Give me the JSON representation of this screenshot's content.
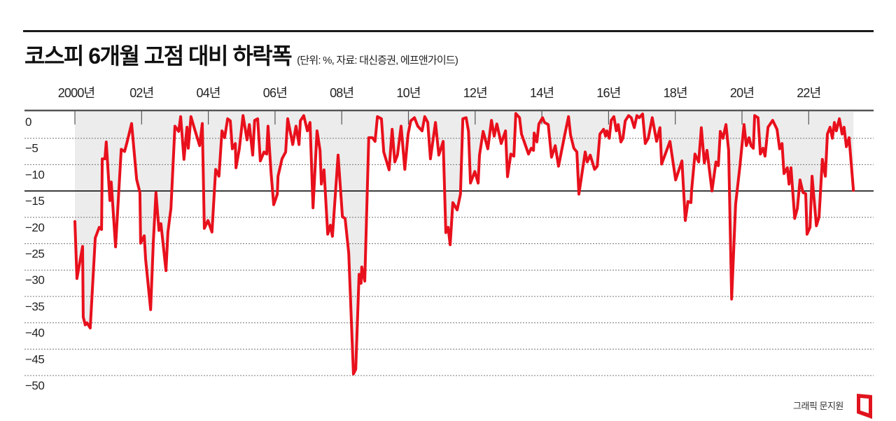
{
  "header": {
    "title": "코스피 6개월 고점 대비 하락폭",
    "subtitle": "(단위: %, 자료: 대신증권, 에프앤가이드)"
  },
  "credit": "그래픽 문지원",
  "colors": {
    "line": "#e8101c",
    "shade": "#ececec",
    "axis": "#555555",
    "grid": "#777777",
    "threshold": "#111111",
    "logo": "#e0141e"
  },
  "chart_data": {
    "type": "line",
    "title": "코스피 6개월 고점 대비 하락폭",
    "subtitle": "(단위: %, 자료: 대신증권, 에프앤가이드)",
    "xlabel": "",
    "ylabel": "%",
    "x_tick_labels": [
      "2000년",
      "02년",
      "04년",
      "06년",
      "08년",
      "10년",
      "12년",
      "14년",
      "16년",
      "18년",
      "20년",
      "22년"
    ],
    "x_ticks": [
      2000,
      2002,
      2004,
      2006,
      2008,
      2010,
      2012,
      2014,
      2016,
      2018,
      2020,
      2022
    ],
    "xlim": [
      2000,
      2023.35
    ],
    "y_tick_labels": [
      "0",
      "-5",
      "-10",
      "-15",
      "-20",
      "-25",
      "-30",
      "-35",
      "-40",
      "-45",
      "-50"
    ],
    "y_ticks": [
      0,
      -5,
      -10,
      -15,
      -20,
      -25,
      -30,
      -35,
      -40,
      -45,
      -50
    ],
    "ylim": [
      -50,
      0
    ],
    "grid": "horizontal dotted",
    "reference_line": -15,
    "area_fill": "between 0 and series",
    "legend": "none",
    "series": [
      {
        "name": "코스피 6개월 고점 대비 하락폭",
        "x": [
          2000.0,
          2000.06,
          2000.23,
          2000.25,
          2000.31,
          2000.36,
          2000.46,
          2000.61,
          2000.73,
          2000.8,
          2000.82,
          2000.9,
          2000.94,
          2001.05,
          2001.09,
          2001.22,
          2001.39,
          2001.49,
          2001.57,
          2001.7,
          2001.85,
          2001.95,
          2001.97,
          2002.08,
          2002.12,
          2002.27,
          2002.35,
          2002.43,
          2002.52,
          2002.58,
          2002.73,
          2002.79,
          2002.88,
          2003.0,
          2003.11,
          2003.17,
          2003.27,
          2003.36,
          2003.4,
          2003.48,
          2003.59,
          2003.74,
          2003.82,
          2003.88,
          2003.99,
          2004.11,
          2004.22,
          2004.32,
          2004.41,
          2004.49,
          2004.58,
          2004.66,
          2004.72,
          2004.81,
          2004.83,
          2004.93,
          2005.04,
          2005.16,
          2005.23,
          2005.33,
          2005.39,
          2005.48,
          2005.56,
          2005.67,
          2005.75,
          2005.79,
          2005.88,
          2005.96,
          2006.07,
          2006.09,
          2006.21,
          2006.32,
          2006.38,
          2006.53,
          2006.63,
          2006.72,
          2006.76,
          2006.86,
          2006.97,
          2007.05,
          2007.14,
          2007.26,
          2007.35,
          2007.39,
          2007.47,
          2007.58,
          2007.66,
          2007.72,
          2007.89,
          2008.02,
          2008.1,
          2008.21,
          2008.35,
          2008.42,
          2008.52,
          2008.58,
          2008.6,
          2008.69,
          2008.81,
          2008.92,
          2009.0,
          2009.07,
          2009.19,
          2009.26,
          2009.42,
          2009.51,
          2009.59,
          2009.67,
          2009.78,
          2009.89,
          2009.99,
          2010.07,
          2010.18,
          2010.28,
          2010.41,
          2010.49,
          2010.58,
          2010.66,
          2010.81,
          2010.91,
          2011.04,
          2011.12,
          2011.19,
          2011.25,
          2011.33,
          2011.46,
          2011.56,
          2011.63,
          2011.73,
          2011.8,
          2011.86,
          2011.99,
          2012.09,
          2012.13,
          2012.24,
          2012.38,
          2012.49,
          2012.57,
          2012.65,
          2012.78,
          2012.91,
          2012.97,
          2013.07,
          2013.16,
          2013.22,
          2013.33,
          2013.39,
          2013.6,
          2013.68,
          2013.75,
          2013.77,
          2013.85,
          2013.91,
          2014.02,
          2014.08,
          2014.19,
          2014.29,
          2014.4,
          2014.5,
          2014.69,
          2014.8,
          2014.86,
          2014.96,
          2015.05,
          2015.11,
          2015.3,
          2015.36,
          2015.45,
          2015.58,
          2015.66,
          2015.74,
          2015.85,
          2015.91,
          2015.95,
          2016.02,
          2016.08,
          2016.16,
          2016.23,
          2016.29,
          2016.37,
          2016.43,
          2016.5,
          2016.6,
          2016.68,
          2016.77,
          2016.85,
          2016.92,
          2017.02,
          2017.1,
          2017.19,
          2017.31,
          2017.44,
          2017.54,
          2017.59,
          2017.84,
          2018.01,
          2018.2,
          2018.3,
          2018.38,
          2018.47,
          2018.49,
          2018.59,
          2018.7,
          2018.78,
          2018.87,
          2018.95,
          2019.1,
          2019.22,
          2019.29,
          2019.35,
          2019.43,
          2019.52,
          2019.6,
          2019.69,
          2019.81,
          2019.94,
          2020.06,
          2020.13,
          2020.21,
          2020.27,
          2020.34,
          2020.38,
          2020.48,
          2020.55,
          2020.63,
          2020.69,
          2020.78,
          2020.92,
          2021.05,
          2021.13,
          2021.2,
          2021.26,
          2021.36,
          2021.41,
          2021.47,
          2021.58,
          2021.66,
          2021.74,
          2021.83,
          2021.91,
          2021.95,
          2022.04,
          2022.1,
          2022.23,
          2022.31,
          2022.41,
          2022.5,
          2022.56,
          2022.64,
          2022.71,
          2022.77,
          2022.83,
          2022.92,
          2023.0,
          2023.06,
          2023.13,
          2023.21,
          2023.34
        ],
        "values": [
          -20.8,
          -31.6,
          -25.5,
          -38.9,
          -40.4,
          -40.0,
          -41.0,
          -23.9,
          -21.9,
          -22.3,
          -8.9,
          -8.9,
          -5.7,
          -16.8,
          -13.3,
          -25.6,
          -7.1,
          -7.5,
          -5.6,
          -2.2,
          -12.8,
          -15.3,
          -24.9,
          -23.5,
          -27.9,
          -37.5,
          -24.8,
          -15.3,
          -22.5,
          -21.2,
          -30.1,
          -22.8,
          -18.3,
          -2.7,
          -3.7,
          -0.9,
          -9.0,
          -2.9,
          -6.9,
          -0.9,
          -3.3,
          -6.4,
          -2.2,
          -22.1,
          -20.6,
          -22.8,
          -10.9,
          -12.2,
          -3.6,
          -4.9,
          -1.3,
          -1.7,
          -7.0,
          -6.0,
          -10.6,
          -7.0,
          -0.7,
          -5.3,
          -2.4,
          -8.2,
          -1.6,
          -1.3,
          -9.3,
          -7.6,
          -8.0,
          -2.7,
          -11.5,
          -17.6,
          -15.6,
          -12.2,
          -8.9,
          -7.6,
          -1.3,
          -6.2,
          -2.7,
          -6.2,
          -1.7,
          -0.7,
          -3.6,
          -2.0,
          -18.2,
          -3.6,
          -7.3,
          -13.7,
          -11.0,
          -23.2,
          -21.5,
          -23.6,
          -8.2,
          -19.9,
          -20.2,
          -26.8,
          -49.7,
          -48.8,
          -30.8,
          -32.5,
          -29.4,
          -32.1,
          -4.9,
          -4.9,
          -5.6,
          -0.9,
          -1.3,
          -7.6,
          -11.0,
          -3.3,
          -9.5,
          -8.2,
          -2.7,
          -10.9,
          -4.2,
          -1.7,
          -1.1,
          -2.7,
          -3.6,
          -0.9,
          -2.0,
          -8.9,
          -2.0,
          -8.2,
          -5.6,
          -22.9,
          -21.9,
          -25.2,
          -17.2,
          -18.6,
          -15.6,
          -1.3,
          -1.1,
          -3.7,
          -13.5,
          -11.3,
          -13.5,
          -8.2,
          -3.7,
          -7.0,
          -1.6,
          -4.6,
          -2.3,
          -6.0,
          -3.6,
          -12.3,
          -8.0,
          -8.4,
          -0.3,
          -1.1,
          -4.2,
          -8.0,
          -6.9,
          -7.3,
          -4.0,
          -5.7,
          -2.3,
          -1.1,
          -2.0,
          -2.4,
          -8.6,
          -6.4,
          -10.3,
          -4.2,
          -0.9,
          -4.4,
          -6.9,
          -7.6,
          -15.6,
          -7.6,
          -9.5,
          -8.2,
          -10.9,
          -10.3,
          -4.2,
          -3.3,
          -4.6,
          -3.6,
          -5.0,
          -1.6,
          -0.9,
          -3.6,
          -2.4,
          -5.7,
          -5.0,
          -1.7,
          -0.7,
          -1.1,
          -3.0,
          -0.7,
          -1.1,
          -0.4,
          -6.0,
          -5.0,
          -1.1,
          -5.6,
          -3.0,
          -9.9,
          -5.6,
          -12.9,
          -9.3,
          -20.6,
          -17.0,
          -17.2,
          -14.9,
          -8.0,
          -9.5,
          -3.0,
          -9.7,
          -7.3,
          -15.0,
          -9.5,
          -10.2,
          -3.7,
          -5.0,
          -2.4,
          -7.3,
          -35.5,
          -17.5,
          -10.2,
          -2.4,
          -6.4,
          -4.9,
          -6.4,
          -6.9,
          -0.7,
          -1.1,
          -8.0,
          -6.9,
          -8.4,
          -2.9,
          -1.6,
          -3.3,
          -7.0,
          -6.0,
          -11.7,
          -10.6,
          -13.7,
          -10.6,
          -20.2,
          -18.3,
          -12.9,
          -15.3,
          -15.5,
          -23.2,
          -21.9,
          -12.2,
          -21.6,
          -19.9,
          -9.0,
          -12.2,
          -4.2,
          -2.9,
          -5.0,
          -2.0,
          -3.6,
          -1.3,
          -4.2,
          -2.9,
          -6.6,
          -4.9,
          -14.9
        ]
      }
    ]
  }
}
